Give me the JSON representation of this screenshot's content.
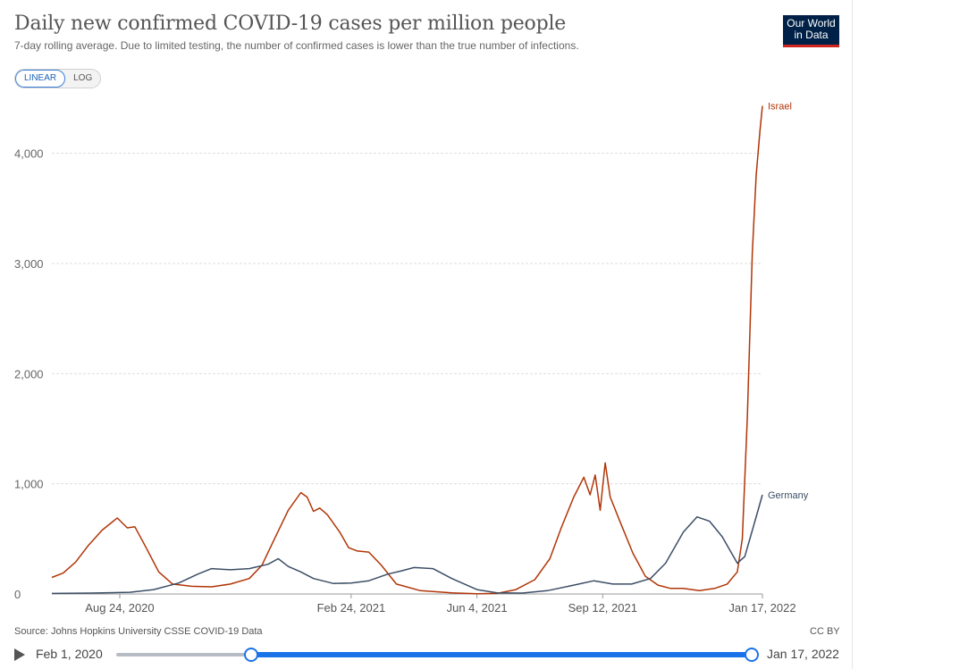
{
  "header": {
    "title": "Daily new confirmed COVID-19 cases per million people",
    "subtitle": "7-day rolling average. Due to limited testing, the number of confirmed cases is lower than the true number of infections."
  },
  "logo": {
    "line1": "Our World",
    "line2": "in Data"
  },
  "scale_toggle": {
    "linear_label": "LINEAR",
    "log_label": "LOG",
    "selected": "LINEAR"
  },
  "footer": {
    "source": "Source: Johns Hopkins University CSSE COVID-19 Data",
    "license": "CC BY"
  },
  "timeline": {
    "start_label": "Feb 1, 2020",
    "end_label": "Jan 17, 2022",
    "selection_start": "2020-07-01",
    "selection_end": "2022-01-17"
  },
  "chart_data": {
    "type": "line",
    "title": "Daily new confirmed COVID-19 cases per million people",
    "subtitle": "7-day rolling average. Due to limited testing, the number of confirmed cases is lower than the true number of infections.",
    "xlim": [
      "2020-07-01",
      "2022-01-17"
    ],
    "ylim": [
      0,
      4500
    ],
    "yticks": [
      0,
      1000,
      2000,
      3000,
      4000
    ],
    "ytick_labels": [
      "0",
      "1,000",
      "2,000",
      "3,000",
      "4,000"
    ],
    "xticks": [
      "2020-08-24",
      "2021-02-24",
      "2021-06-04",
      "2021-09-12",
      "2022-01-17"
    ],
    "xtick_labels": [
      "Aug 24, 2020",
      "Feb 24, 2021",
      "Jun 4, 2021",
      "Sep 12, 2021",
      "Jan 17, 2022"
    ],
    "grid": true,
    "legend": "line-end labels",
    "series": [
      {
        "name": "Israel",
        "color": "#b13507",
        "points": [
          [
            "2020-07-01",
            150
          ],
          [
            "2020-07-10",
            190
          ],
          [
            "2020-07-20",
            290
          ],
          [
            "2020-07-30",
            440
          ],
          [
            "2020-08-10",
            580
          ],
          [
            "2020-08-22",
            690
          ],
          [
            "2020-08-30",
            600
          ],
          [
            "2020-09-05",
            610
          ],
          [
            "2020-09-14",
            420
          ],
          [
            "2020-09-24",
            200
          ],
          [
            "2020-10-05",
            90
          ],
          [
            "2020-10-20",
            70
          ],
          [
            "2020-11-05",
            65
          ],
          [
            "2020-11-20",
            90
          ],
          [
            "2020-12-05",
            140
          ],
          [
            "2020-12-15",
            260
          ],
          [
            "2020-12-25",
            500
          ],
          [
            "2021-01-05",
            760
          ],
          [
            "2021-01-15",
            920
          ],
          [
            "2021-01-20",
            880
          ],
          [
            "2021-01-25",
            750
          ],
          [
            "2021-01-30",
            780
          ],
          [
            "2021-02-05",
            720
          ],
          [
            "2021-02-15",
            560
          ],
          [
            "2021-02-22",
            420
          ],
          [
            "2021-03-01",
            390
          ],
          [
            "2021-03-10",
            380
          ],
          [
            "2021-03-20",
            260
          ],
          [
            "2021-04-01",
            90
          ],
          [
            "2021-04-20",
            30
          ],
          [
            "2021-05-15",
            10
          ],
          [
            "2021-06-04",
            2
          ],
          [
            "2021-06-20",
            5
          ],
          [
            "2021-07-05",
            40
          ],
          [
            "2021-07-20",
            130
          ],
          [
            "2021-08-01",
            320
          ],
          [
            "2021-08-10",
            600
          ],
          [
            "2021-08-20",
            880
          ],
          [
            "2021-08-28",
            1060
          ],
          [
            "2021-09-02",
            900
          ],
          [
            "2021-09-06",
            1080
          ],
          [
            "2021-09-10",
            760
          ],
          [
            "2021-09-14",
            1190
          ],
          [
            "2021-09-18",
            880
          ],
          [
            "2021-09-26",
            650
          ],
          [
            "2021-10-06",
            370
          ],
          [
            "2021-10-16",
            160
          ],
          [
            "2021-10-26",
            80
          ],
          [
            "2021-11-05",
            50
          ],
          [
            "2021-11-15",
            50
          ],
          [
            "2021-11-28",
            30
          ],
          [
            "2021-12-10",
            50
          ],
          [
            "2021-12-20",
            90
          ],
          [
            "2021-12-28",
            200
          ],
          [
            "2022-01-01",
            500
          ],
          [
            "2022-01-05",
            1600
          ],
          [
            "2022-01-09",
            3100
          ],
          [
            "2022-01-12",
            3800
          ],
          [
            "2022-01-15",
            4200
          ],
          [
            "2022-01-17",
            4430
          ]
        ]
      },
      {
        "name": "Germany",
        "color": "#3c4e66",
        "points": [
          [
            "2020-07-01",
            5
          ],
          [
            "2020-08-01",
            8
          ],
          [
            "2020-09-01",
            15
          ],
          [
            "2020-09-20",
            40
          ],
          [
            "2020-10-10",
            100
          ],
          [
            "2020-10-25",
            180
          ],
          [
            "2020-11-05",
            230
          ],
          [
            "2020-11-20",
            220
          ],
          [
            "2020-12-05",
            230
          ],
          [
            "2020-12-20",
            270
          ],
          [
            "2020-12-28",
            320
          ],
          [
            "2021-01-05",
            250
          ],
          [
            "2021-01-15",
            200
          ],
          [
            "2021-01-25",
            140
          ],
          [
            "2021-02-10",
            95
          ],
          [
            "2021-02-24",
            100
          ],
          [
            "2021-03-10",
            120
          ],
          [
            "2021-03-25",
            180
          ],
          [
            "2021-04-05",
            210
          ],
          [
            "2021-04-15",
            240
          ],
          [
            "2021-04-30",
            230
          ],
          [
            "2021-05-15",
            140
          ],
          [
            "2021-06-04",
            40
          ],
          [
            "2021-06-20",
            10
          ],
          [
            "2021-07-10",
            8
          ],
          [
            "2021-07-30",
            30
          ],
          [
            "2021-08-20",
            80
          ],
          [
            "2021-09-05",
            120
          ],
          [
            "2021-09-20",
            90
          ],
          [
            "2021-10-05",
            90
          ],
          [
            "2021-10-20",
            140
          ],
          [
            "2021-11-01",
            280
          ],
          [
            "2021-11-15",
            560
          ],
          [
            "2021-11-26",
            700
          ],
          [
            "2021-12-06",
            660
          ],
          [
            "2021-12-16",
            520
          ],
          [
            "2021-12-28",
            280
          ],
          [
            "2022-01-03",
            340
          ],
          [
            "2022-01-10",
            620
          ],
          [
            "2022-01-17",
            900
          ]
        ]
      }
    ]
  }
}
